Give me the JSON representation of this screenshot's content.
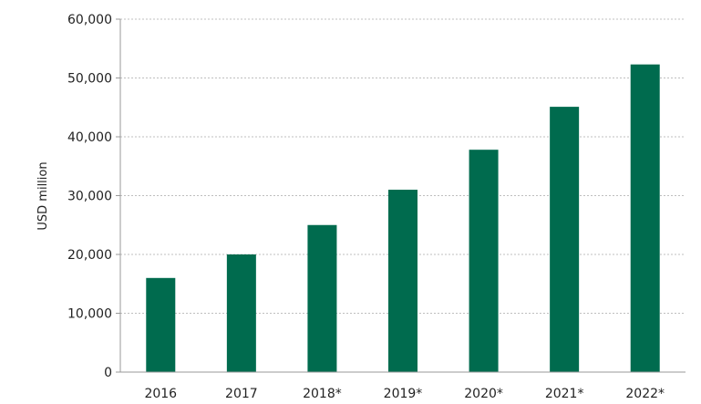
{
  "chart_data": {
    "type": "bar",
    "categories": [
      "2016",
      "2017",
      "2018*",
      "2019*",
      "2020*",
      "2021*",
      "2022*"
    ],
    "values": [
      16000,
      20000,
      25000,
      31000,
      37800,
      45100,
      52300
    ],
    "title": "",
    "xlabel": "",
    "ylabel": "USD million",
    "ylim": [
      0,
      60000
    ],
    "yticks": [
      0,
      10000,
      20000,
      30000,
      40000,
      50000,
      60000
    ],
    "ytick_labels": [
      "0",
      "10,000",
      "20,000",
      "30,000",
      "40,000",
      "50,000",
      "60,000"
    ],
    "grid": true,
    "bar_color": "#006b4e",
    "grid_color": "#bfbfbf"
  }
}
